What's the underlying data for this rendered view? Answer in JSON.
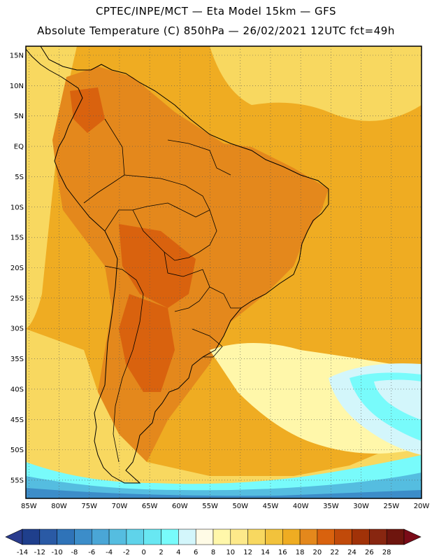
{
  "header": {
    "line1": "CPTEC/INPE/MCT —  Eta Model 15km — GFS",
    "line2": "Absolute Temperature (C) 850hPa — 26/02/2021 12UTC fct=49h"
  },
  "lat_labels": [
    "15N",
    "10N",
    "5N",
    "EQ",
    "5S",
    "10S",
    "15S",
    "20S",
    "25S",
    "30S",
    "35S",
    "40S",
    "45S",
    "50S",
    "55S"
  ],
  "lat_values": [
    15,
    10,
    5,
    0,
    -5,
    -10,
    -15,
    -20,
    -25,
    -30,
    -35,
    -40,
    -45,
    -50,
    -55
  ],
  "lon_labels": [
    "85W",
    "80W",
    "75W",
    "70W",
    "65W",
    "60W",
    "55W",
    "50W",
    "45W",
    "40W",
    "35W",
    "30W",
    "25W",
    "20W"
  ],
  "lon_values": [
    -85,
    -80,
    -75,
    -70,
    -65,
    -60,
    -55,
    -50,
    -45,
    -40,
    -35,
    -30,
    -25,
    -20
  ],
  "extent": {
    "lon_min": -85.5,
    "lon_max": -20,
    "lat_min": -58,
    "lat_max": 16.5
  },
  "colorbar": {
    "labels": [
      "-14",
      "-12",
      "-10",
      "-8",
      "-6",
      "-4",
      "-2",
      "0",
      "2",
      "4",
      "6",
      "8",
      "10",
      "12",
      "14",
      "16",
      "18",
      "20",
      "22",
      "24",
      "26",
      "28"
    ],
    "colors": [
      "#1f3f8c",
      "#2a5aa5",
      "#2f73b8",
      "#3c8dc9",
      "#4aa6d6",
      "#55bde0",
      "#5fd3ea",
      "#68e7f2",
      "#78fbfb",
      "#d3f6fb",
      "#fffbe6",
      "#fff7aa",
      "#fde98a",
      "#f8d860",
      "#f2c23c",
      "#efac22",
      "#e4881c",
      "#d9620e",
      "#c14a0a",
      "#a13208",
      "#882610",
      "#6e150e"
    ],
    "left_arrow": "#2a3c8e",
    "right_arrow": "#7a0b18"
  },
  "field": {
    "ocean": "#efac22",
    "land": "#e4881c",
    "hot": "#d9620e",
    "cool_band": "#f8d860",
    "cooler": "#fde98a",
    "pale": "#fff7aa",
    "cold_a": "#d3f6fb",
    "cold_b": "#78fbfb",
    "cold_c": "#55bde0",
    "cold_d": "#3c8dc9"
  }
}
